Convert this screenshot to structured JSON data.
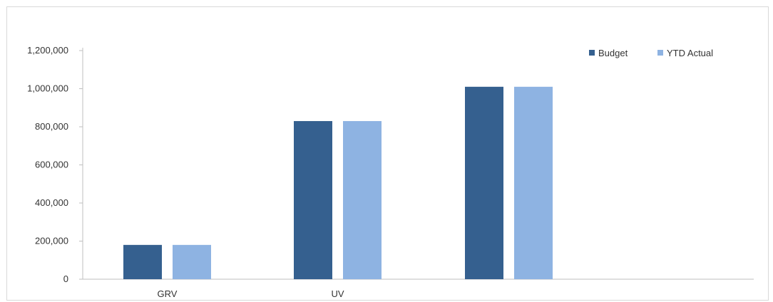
{
  "chart_data": {
    "type": "bar",
    "categories": [
      "GRV",
      "UV",
      ""
    ],
    "series": [
      {
        "name": "Budget",
        "values": [
          180000,
          830000,
          1010000
        ],
        "color": "#35608f"
      },
      {
        "name": "YTD Actual",
        "values": [
          180000,
          830000,
          1010000
        ],
        "color": "#8eb3e2"
      }
    ],
    "ylim": [
      0,
      1200000
    ],
    "yticks": [
      0,
      200000,
      400000,
      600000,
      800000,
      1000000,
      1200000
    ],
    "ytick_labels": [
      "0",
      "200,000",
      "400,000",
      "600,000",
      "800,000",
      "1,000,000",
      "1,200,000"
    ],
    "grid": false,
    "legend_position": "top-right"
  }
}
